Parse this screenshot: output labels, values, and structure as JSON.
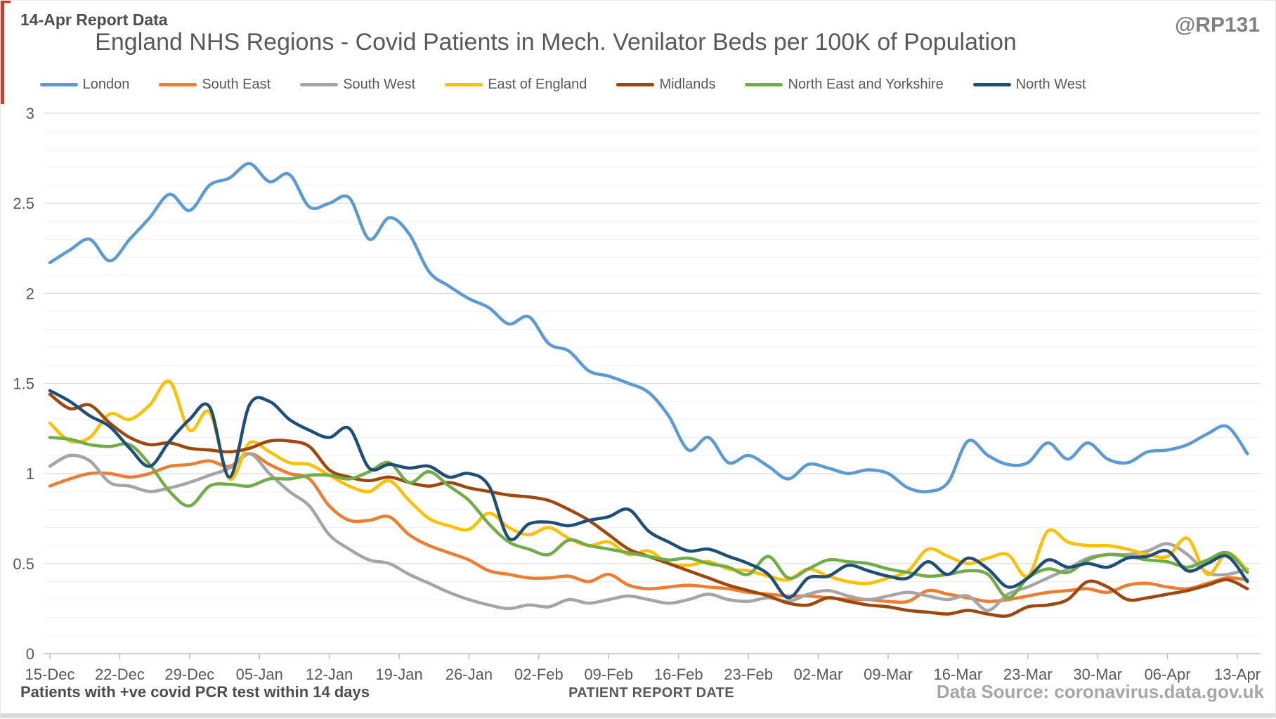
{
  "annotations": {
    "report_label": "14-Apr Report Data",
    "handle": "@RP131",
    "footnote": "Patients with +ve covid PCR test within 14 days",
    "source": "Data Source: coronavirus.data.gov.uk"
  },
  "chart_data": {
    "type": "line",
    "title": "England NHS Regions - Covid Patients in Mech. Venilator Beds per 100K of Population",
    "xlabel": "PATIENT REPORT DATE",
    "ylabel": "",
    "ylim": [
      0,
      3
    ],
    "y_ticks": [
      0,
      0.5,
      1,
      1.5,
      2,
      2.5,
      3
    ],
    "y_minor_step": 0.1,
    "grid": "on",
    "legend_position": "top",
    "x_tick_labels": [
      "15-Dec",
      "22-Dec",
      "29-Dec",
      "05-Jan",
      "12-Jan",
      "19-Jan",
      "26-Jan",
      "02-Feb",
      "09-Feb",
      "16-Feb",
      "23-Feb",
      "02-Mar",
      "09-Mar",
      "16-Mar",
      "23-Mar",
      "30-Mar",
      "06-Apr",
      "13-Apr"
    ],
    "x_sample_interval_days": 2,
    "x": [
      "15-Dec",
      "17-Dec",
      "19-Dec",
      "21-Dec",
      "23-Dec",
      "25-Dec",
      "27-Dec",
      "29-Dec",
      "31-Dec",
      "02-Jan",
      "04-Jan",
      "06-Jan",
      "08-Jan",
      "10-Jan",
      "12-Jan",
      "14-Jan",
      "16-Jan",
      "18-Jan",
      "20-Jan",
      "22-Jan",
      "24-Jan",
      "26-Jan",
      "28-Jan",
      "30-Jan",
      "01-Feb",
      "03-Feb",
      "05-Feb",
      "07-Feb",
      "09-Feb",
      "11-Feb",
      "13-Feb",
      "15-Feb",
      "17-Feb",
      "19-Feb",
      "21-Feb",
      "23-Feb",
      "25-Feb",
      "27-Feb",
      "01-Mar",
      "03-Mar",
      "05-Mar",
      "07-Mar",
      "09-Mar",
      "11-Mar",
      "13-Mar",
      "15-Mar",
      "17-Mar",
      "19-Mar",
      "21-Mar",
      "23-Mar",
      "25-Mar",
      "27-Mar",
      "29-Mar",
      "31-Mar",
      "02-Apr",
      "04-Apr",
      "06-Apr",
      "08-Apr",
      "10-Apr",
      "12-Apr",
      "14-Apr"
    ],
    "series": [
      {
        "name": "London",
        "color": "#5B9BD5",
        "values": [
          2.17,
          2.24,
          2.3,
          2.18,
          2.3,
          2.42,
          2.55,
          2.46,
          2.6,
          2.64,
          2.72,
          2.62,
          2.66,
          2.48,
          2.5,
          2.53,
          2.3,
          2.42,
          2.33,
          2.12,
          2.04,
          1.97,
          1.92,
          1.83,
          1.87,
          1.72,
          1.68,
          1.57,
          1.54,
          1.5,
          1.45,
          1.32,
          1.13,
          1.2,
          1.06,
          1.1,
          1.04,
          0.97,
          1.05,
          1.03,
          1.0,
          1.02,
          1.0,
          0.92,
          0.9,
          0.95,
          1.18,
          1.1,
          1.05,
          1.06,
          1.17,
          1.08,
          1.17,
          1.08,
          1.06,
          1.12,
          1.13,
          1.16,
          1.22,
          1.26,
          1.11
        ]
      },
      {
        "name": "South East",
        "color": "#ED7D31",
        "values": [
          0.93,
          0.97,
          1.0,
          1.0,
          0.98,
          1.0,
          1.04,
          1.05,
          1.07,
          1.04,
          1.11,
          1.05,
          1.0,
          0.97,
          0.82,
          0.74,
          0.74,
          0.76,
          0.66,
          0.6,
          0.56,
          0.52,
          0.46,
          0.44,
          0.42,
          0.42,
          0.43,
          0.4,
          0.44,
          0.38,
          0.36,
          0.37,
          0.38,
          0.37,
          0.36,
          0.34,
          0.33,
          0.32,
          0.32,
          0.31,
          0.3,
          0.3,
          0.29,
          0.29,
          0.35,
          0.33,
          0.31,
          0.29,
          0.3,
          0.32,
          0.34,
          0.35,
          0.36,
          0.34,
          0.38,
          0.39,
          0.37,
          0.36,
          0.39,
          0.42,
          0.41
        ]
      },
      {
        "name": "South West",
        "color": "#A5A5A5",
        "values": [
          1.04,
          1.1,
          1.07,
          0.95,
          0.93,
          0.9,
          0.92,
          0.95,
          0.99,
          1.03,
          1.11,
          1.0,
          0.9,
          0.82,
          0.66,
          0.58,
          0.52,
          0.5,
          0.44,
          0.39,
          0.34,
          0.3,
          0.27,
          0.25,
          0.27,
          0.26,
          0.3,
          0.28,
          0.3,
          0.32,
          0.3,
          0.28,
          0.3,
          0.33,
          0.3,
          0.29,
          0.31,
          0.29,
          0.33,
          0.35,
          0.32,
          0.3,
          0.32,
          0.34,
          0.32,
          0.3,
          0.32,
          0.24,
          0.33,
          0.37,
          0.42,
          0.47,
          0.53,
          0.55,
          0.55,
          0.57,
          0.61,
          0.55,
          0.45,
          0.44,
          0.47
        ]
      },
      {
        "name": "East of England",
        "color": "#FFC000",
        "values": [
          1.28,
          1.18,
          1.2,
          1.33,
          1.3,
          1.38,
          1.51,
          1.24,
          1.34,
          0.97,
          1.17,
          1.12,
          1.06,
          1.05,
          0.99,
          0.93,
          0.9,
          0.96,
          0.85,
          0.75,
          0.71,
          0.69,
          0.78,
          0.7,
          0.66,
          0.7,
          0.64,
          0.6,
          0.62,
          0.55,
          0.57,
          0.5,
          0.49,
          0.51,
          0.47,
          0.46,
          0.43,
          0.41,
          0.47,
          0.43,
          0.4,
          0.39,
          0.42,
          0.46,
          0.58,
          0.54,
          0.5,
          0.53,
          0.55,
          0.43,
          0.68,
          0.62,
          0.6,
          0.6,
          0.58,
          0.55,
          0.54,
          0.64,
          0.44,
          0.56,
          0.46
        ]
      },
      {
        "name": "Midlands",
        "color": "#9E480E",
        "values": [
          1.44,
          1.36,
          1.38,
          1.28,
          1.2,
          1.16,
          1.17,
          1.14,
          1.13,
          1.12,
          1.14,
          1.18,
          1.18,
          1.15,
          1.02,
          0.98,
          0.96,
          0.98,
          0.95,
          0.93,
          0.95,
          0.92,
          0.9,
          0.88,
          0.87,
          0.85,
          0.8,
          0.74,
          0.66,
          0.58,
          0.54,
          0.5,
          0.46,
          0.42,
          0.38,
          0.35,
          0.32,
          0.28,
          0.27,
          0.31,
          0.29,
          0.27,
          0.26,
          0.24,
          0.23,
          0.22,
          0.24,
          0.22,
          0.21,
          0.26,
          0.27,
          0.3,
          0.4,
          0.37,
          0.3,
          0.31,
          0.33,
          0.35,
          0.38,
          0.41,
          0.36
        ]
      },
      {
        "name": "North East and Yorkshire",
        "color": "#70AD47",
        "values": [
          1.2,
          1.19,
          1.16,
          1.15,
          1.16,
          1.05,
          0.9,
          0.82,
          0.93,
          0.94,
          0.93,
          0.97,
          0.97,
          0.99,
          0.99,
          0.97,
          1.01,
          1.06,
          0.95,
          1.01,
          0.93,
          0.85,
          0.72,
          0.62,
          0.58,
          0.55,
          0.63,
          0.6,
          0.58,
          0.56,
          0.54,
          0.52,
          0.53,
          0.5,
          0.48,
          0.44,
          0.54,
          0.42,
          0.47,
          0.52,
          0.51,
          0.5,
          0.47,
          0.45,
          0.43,
          0.44,
          0.46,
          0.44,
          0.31,
          0.42,
          0.47,
          0.45,
          0.52,
          0.55,
          0.54,
          0.52,
          0.51,
          0.48,
          0.52,
          0.56,
          0.45
        ]
      },
      {
        "name": "North West",
        "color": "#1F4E79",
        "values": [
          1.46,
          1.4,
          1.32,
          1.26,
          1.14,
          1.04,
          1.18,
          1.3,
          1.37,
          0.98,
          1.38,
          1.4,
          1.3,
          1.24,
          1.2,
          1.25,
          1.03,
          1.05,
          1.03,
          1.04,
          0.98,
          1.0,
          0.93,
          0.64,
          0.72,
          0.73,
          0.71,
          0.74,
          0.76,
          0.8,
          0.68,
          0.62,
          0.57,
          0.58,
          0.54,
          0.5,
          0.44,
          0.31,
          0.42,
          0.43,
          0.49,
          0.46,
          0.43,
          0.42,
          0.51,
          0.44,
          0.53,
          0.47,
          0.37,
          0.42,
          0.52,
          0.48,
          0.5,
          0.48,
          0.53,
          0.54,
          0.57,
          0.46,
          0.5,
          0.54,
          0.4
        ]
      }
    ]
  },
  "style": {
    "grid_minor_color": "#f0f0f0",
    "grid_major_color": "#dcdcdc",
    "axis_color": "#bfbfbf",
    "tick_label_color": "#595959",
    "accent_red": "#e8321e"
  }
}
